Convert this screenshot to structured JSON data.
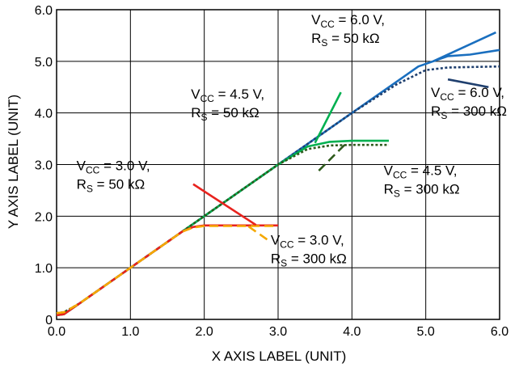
{
  "chart_data": {
    "type": "line",
    "title": "",
    "xlabel": "X AXIS LABEL (UNIT)",
    "ylabel": "Y AXIS LABEL (UNIT)",
    "xlim": [
      0,
      6
    ],
    "ylim": [
      0,
      6
    ],
    "grid": true,
    "x_ticks": [
      "0.0",
      "1.0",
      "2.0",
      "3.0",
      "4.0",
      "5.0",
      "6.0"
    ],
    "y_ticks": [
      "0",
      "1.0",
      "2.0",
      "3.0",
      "4.0",
      "5.0",
      "6.0"
    ],
    "series": [
      {
        "color": "#1a6fbf",
        "dash": "solid",
        "x": [
          0.0,
          0.1,
          0.3,
          1.0,
          2.0,
          3.0,
          4.0,
          4.6,
          4.9,
          5.1,
          5.3,
          5.6,
          6.0
        ],
        "y": [
          0.08,
          0.1,
          0.3,
          1.0,
          2.0,
          3.0,
          4.0,
          4.6,
          4.9,
          5.0,
          5.1,
          5.13,
          5.22
        ]
      },
      {
        "color": "#1f3f6e",
        "dash": "dotted",
        "x": [
          0.0,
          0.1,
          0.3,
          1.0,
          2.0,
          3.0,
          4.0,
          4.6,
          5.0,
          5.3,
          5.6,
          6.0
        ],
        "y": [
          0.12,
          0.14,
          0.3,
          1.0,
          2.0,
          3.0,
          4.0,
          4.55,
          4.83,
          4.88,
          4.89,
          4.9
        ]
      },
      {
        "color": "#00b050",
        "dash": "solid",
        "x": [
          0.0,
          0.1,
          0.3,
          1.0,
          2.0,
          3.0,
          3.4,
          3.7,
          4.0,
          4.5
        ],
        "y": [
          0.08,
          0.1,
          0.3,
          1.0,
          2.0,
          3.0,
          3.35,
          3.44,
          3.46,
          3.46
        ]
      },
      {
        "color": "#2d5a1b",
        "dash": "dotted",
        "x": [
          0.0,
          0.1,
          0.3,
          1.0,
          2.0,
          3.0,
          3.4,
          3.7,
          4.0,
          4.5
        ],
        "y": [
          0.12,
          0.14,
          0.3,
          1.0,
          2.0,
          3.0,
          3.3,
          3.37,
          3.38,
          3.38
        ]
      },
      {
        "color": "#e8231e",
        "dash": "solid",
        "x": [
          0.0,
          0.1,
          0.3,
          1.0,
          1.7,
          1.85,
          2.0,
          2.5,
          3.0
        ],
        "y": [
          0.08,
          0.1,
          0.3,
          1.0,
          1.7,
          1.79,
          1.82,
          1.82,
          1.82
        ]
      },
      {
        "color": "#f5a800",
        "dash": "dashed",
        "x": [
          0.0,
          0.1,
          0.3,
          1.0,
          1.7,
          1.85,
          2.0,
          2.5,
          3.0
        ],
        "y": [
          0.12,
          0.14,
          0.3,
          1.0,
          1.7,
          1.78,
          1.81,
          1.81,
          1.81
        ]
      }
    ],
    "annotations": [
      {
        "lines": [
          {
            "main": "V",
            "sub": "CC",
            "rest": " = 6.0 V,"
          },
          {
            "main": "R",
            "sub": "S",
            "rest": " = 50 kΩ"
          }
        ],
        "text_at": [
          3.45,
          5.72
        ],
        "leader_from": [
          5.95,
          5.56
        ],
        "leader_to": [
          5.1,
          5.0
        ],
        "leader_color": "#1a6fbf",
        "leader_dash": "solid"
      },
      {
        "lines": [
          {
            "main": "V",
            "sub": "CC",
            "rest": " = 6.0 V,"
          },
          {
            "main": "R",
            "sub": "S",
            "rest": " = 300 kΩ"
          }
        ],
        "text_at": [
          5.07,
          4.31
        ],
        "leader_from": [
          5.3,
          4.65
        ],
        "leader_to": [
          5.85,
          4.5
        ],
        "leader_color": "#1f3f6e",
        "leader_dash": "solid"
      },
      {
        "lines": [
          {
            "main": "V",
            "sub": "CC",
            "rest": " = 4.5 V,"
          },
          {
            "main": "R",
            "sub": "S",
            "rest": " = 50 kΩ"
          }
        ],
        "text_at": [
          1.82,
          4.28
        ],
        "leader_from": [
          3.85,
          4.4
        ],
        "leader_to": [
          3.5,
          3.42
        ],
        "leader_color": "#00b050",
        "leader_dash": "solid"
      },
      {
        "lines": [
          {
            "main": "V",
            "sub": "CC",
            "rest": " = 4.5 V,"
          },
          {
            "main": "R",
            "sub": "S",
            "rest": " = 300 kΩ"
          }
        ],
        "text_at": [
          4.43,
          2.8
        ],
        "leader_from": [
          3.9,
          3.38
        ],
        "leader_to": [
          3.55,
          2.88
        ],
        "leader_color": "#2d5a1b",
        "leader_dash": "dashed"
      },
      {
        "lines": [
          {
            "main": "V",
            "sub": "CC",
            "rest": " = 3.0 V,"
          },
          {
            "main": "R",
            "sub": "S",
            "rest": " = 50 kΩ"
          }
        ],
        "text_at": [
          0.27,
          2.89
        ],
        "leader_from": [
          1.85,
          2.62
        ],
        "leader_to": [
          2.7,
          1.83
        ],
        "leader_color": "#e8231e",
        "leader_dash": "solid"
      },
      {
        "lines": [
          {
            "main": "V",
            "sub": "CC",
            "rest": " = 3.0 V,"
          },
          {
            "main": "R",
            "sub": "S",
            "rest": " = 300 kΩ"
          }
        ],
        "text_at": [
          2.9,
          1.45
        ],
        "leader_from": [
          2.6,
          1.8
        ],
        "leader_to": [
          2.9,
          1.5
        ],
        "leader_color": "#f5a800",
        "leader_dash": "dashed"
      }
    ]
  }
}
